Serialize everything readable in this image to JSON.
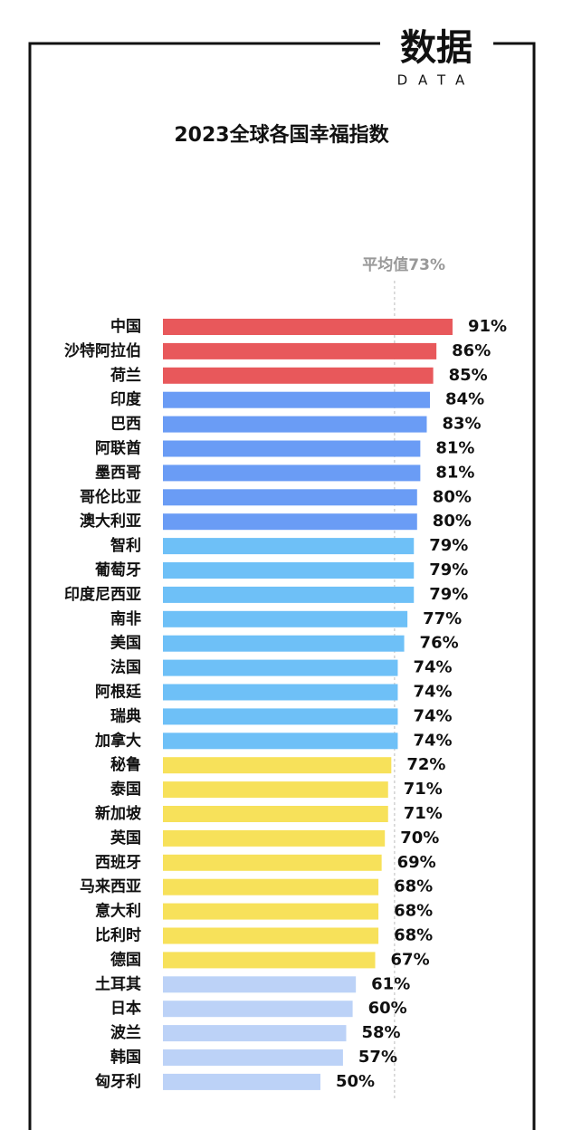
{
  "brand": "数据",
  "brand_sub": "DATA",
  "chart_data": {
    "type": "hbar",
    "title": "2023全球各国幸福指数",
    "categories": [
      "中国",
      "沙特阿拉伯",
      "荷兰",
      "印度",
      "巴西",
      "阿联酋",
      "墨西哥",
      "哥伦比亚",
      "澳大利亚",
      "智利",
      "葡萄牙",
      "印度尼西亚",
      "南非",
      "美国",
      "法国",
      "阿根廷",
      "瑞典",
      "加拿大",
      "秘鲁",
      "泰国",
      "新加坡",
      "英国",
      "西班牙",
      "马来西亚",
      "意大利",
      "比利时",
      "德国",
      "土耳其",
      "日本",
      "波兰",
      "韩国",
      "匈牙利"
    ],
    "values": [
      91,
      86,
      85,
      84,
      83,
      81,
      81,
      80,
      80,
      79,
      79,
      79,
      77,
      76,
      74,
      74,
      74,
      74,
      72,
      71,
      71,
      70,
      69,
      68,
      68,
      68,
      67,
      61,
      60,
      58,
      57,
      50
    ],
    "value_labels": [
      "91%",
      "86%",
      "85%",
      "84%",
      "83%",
      "81%",
      "81%",
      "80%",
      "80%",
      "79%",
      "79%",
      "79%",
      "77%",
      "76%",
      "74%",
      "74%",
      "74%",
      "74%",
      "72%",
      "71%",
      "71%",
      "70%",
      "69%",
      "68%",
      "68%",
      "68%",
      "67%",
      "61%",
      "60%",
      "58%",
      "57%",
      "50%"
    ],
    "colors": [
      "#e8585b",
      "#e8585b",
      "#e8585b",
      "#6a9cf5",
      "#6a9cf5",
      "#6a9cf5",
      "#6a9cf5",
      "#6a9cf5",
      "#6a9cf5",
      "#6ec0f7",
      "#6ec0f7",
      "#6ec0f7",
      "#6ec0f7",
      "#6ec0f7",
      "#6ec0f7",
      "#6ec0f7",
      "#6ec0f7",
      "#6ec0f7",
      "#f7e15a",
      "#f7e15a",
      "#f7e15a",
      "#f7e15a",
      "#f7e15a",
      "#f7e15a",
      "#f7e15a",
      "#f7e15a",
      "#f7e15a",
      "#bcd2f7",
      "#bcd2f7",
      "#bcd2f7",
      "#bcd2f7",
      "#bcd2f7"
    ],
    "xlim": [
      0,
      100
    ],
    "average": {
      "value": 73,
      "label": "平均值73%"
    }
  }
}
